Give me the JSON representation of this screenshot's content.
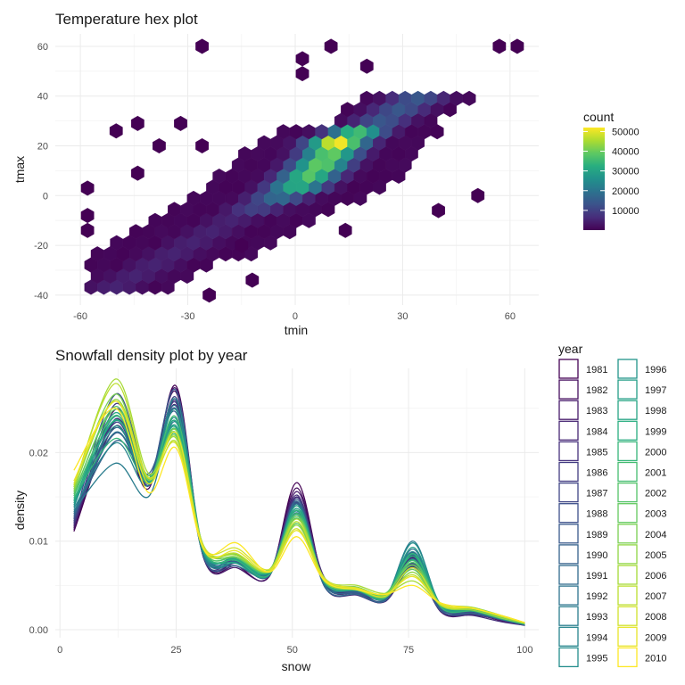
{
  "chart_data": [
    {
      "type": "heatmap",
      "subtype": "hexbin",
      "title": "Temperature hex plot",
      "xlabel": "tmin",
      "ylabel": "tmax",
      "xlim": [
        -67,
        68
      ],
      "ylim": [
        -44,
        65
      ],
      "x_ticks": [
        -60,
        -30,
        0,
        30,
        60
      ],
      "y_ticks": [
        -40,
        -20,
        0,
        20,
        40,
        60
      ],
      "x_tick_labels": [
        "-60",
        "-30",
        "0",
        "30",
        "60"
      ],
      "y_tick_labels": [
        "-40",
        "-20",
        "0",
        "20",
        "40",
        "60"
      ],
      "grid": true,
      "legend": {
        "title": "count",
        "position": "right",
        "colormap": "viridis",
        "range": [
          1,
          52000
        ],
        "breaks": [
          10000,
          20000,
          30000,
          40000,
          50000
        ],
        "labels": [
          "10000",
          "20000",
          "30000",
          "40000",
          "50000"
        ]
      },
      "core_ridge": [
        {
          "x": -18,
          "y": -10,
          "count": 5000
        },
        {
          "x": -12,
          "y": -6,
          "count": 10000
        },
        {
          "x": -6,
          "y": -2,
          "count": 18000
        },
        {
          "x": 0,
          "y": 3,
          "count": 32000
        },
        {
          "x": 4,
          "y": 8,
          "count": 38000
        },
        {
          "x": 9,
          "y": 15,
          "count": 40000
        },
        {
          "x": 13,
          "y": 24,
          "count": 52000
        },
        {
          "x": 18,
          "y": 26,
          "count": 36000
        },
        {
          "x": 24,
          "y": 30,
          "count": 14000
        }
      ],
      "outlier_points": [
        {
          "x": -26,
          "y": 60,
          "count": 1
        },
        {
          "x": 10,
          "y": 60,
          "count": 1
        },
        {
          "x": 57,
          "y": 60,
          "count": 1
        },
        {
          "x": 62,
          "y": 60,
          "count": 1
        },
        {
          "x": 2,
          "y": 55,
          "count": 1
        },
        {
          "x": 20,
          "y": 52,
          "count": 1
        },
        {
          "x": 2,
          "y": 49,
          "count": 1
        },
        {
          "x": -50,
          "y": 26,
          "count": 1
        },
        {
          "x": -44,
          "y": 29,
          "count": 1
        },
        {
          "x": -32,
          "y": 29,
          "count": 1
        },
        {
          "x": -38,
          "y": 20,
          "count": 1
        },
        {
          "x": -26,
          "y": 20,
          "count": 1
        },
        {
          "x": -44,
          "y": 9,
          "count": 1
        },
        {
          "x": -58,
          "y": 3,
          "count": 1
        },
        {
          "x": -58,
          "y": -8,
          "count": 1
        },
        {
          "x": -58,
          "y": -14,
          "count": 1
        },
        {
          "x": 51,
          "y": 0,
          "count": 1
        },
        {
          "x": 40,
          "y": -6,
          "count": 1
        },
        {
          "x": 14,
          "y": -14,
          "count": 1
        },
        {
          "x": -15,
          "y": -20,
          "count": 1
        },
        {
          "x": -24,
          "y": -40,
          "count": 1
        },
        {
          "x": -12,
          "y": -34,
          "count": 1
        }
      ]
    },
    {
      "type": "line",
      "subtype": "density",
      "title": "Snowfall density plot by year",
      "xlabel": "snow",
      "ylabel": "density",
      "xlim": [
        -1,
        103
      ],
      "ylim": [
        -0.0009,
        0.0295
      ],
      "x_ticks": [
        0,
        25,
        50,
        75,
        100
      ],
      "y_ticks": [
        0.0,
        0.01,
        0.02
      ],
      "x_tick_labels": [
        "0",
        "25",
        "50",
        "75",
        "100"
      ],
      "y_tick_labels": [
        "0.00",
        "0.01",
        "0.02"
      ],
      "grid": true,
      "colormap": "viridis",
      "legend": {
        "title": "year",
        "position": "right",
        "columns": 2
      },
      "x": [
        3,
        12,
        19,
        25,
        31,
        38,
        45,
        51,
        57,
        64,
        70,
        76,
        82,
        89,
        95,
        100
      ],
      "series": [
        {
          "name": "1981",
          "values": [
            0.0111,
            0.023,
            0.0159,
            0.0275,
            0.008,
            0.0072,
            0.006,
            0.0166,
            0.0052,
            0.0041,
            0.0032,
            0.0075,
            0.002,
            0.0018,
            0.001,
            0.0005
          ]
        },
        {
          "name": "1982",
          "values": [
            0.0113,
            0.0237,
            0.017,
            0.0268,
            0.008,
            0.0075,
            0.0063,
            0.016,
            0.0053,
            0.0042,
            0.0036,
            0.0071,
            0.0023,
            0.0019,
            0.0012,
            0.0006
          ]
        },
        {
          "name": "1983",
          "values": [
            0.0115,
            0.0249,
            0.0165,
            0.0272,
            0.008,
            0.007,
            0.006,
            0.0156,
            0.0055,
            0.0043,
            0.0033,
            0.0082,
            0.002,
            0.0017,
            0.0011,
            0.0005
          ]
        },
        {
          "name": "1984",
          "values": [
            0.0117,
            0.0236,
            0.0166,
            0.0253,
            0.0085,
            0.0075,
            0.0065,
            0.015,
            0.0058,
            0.0045,
            0.0038,
            0.0081,
            0.0025,
            0.002,
            0.0012,
            0.0006
          ]
        },
        {
          "name": "1985",
          "values": [
            0.0119,
            0.0238,
            0.0163,
            0.0258,
            0.008,
            0.0079,
            0.0063,
            0.0152,
            0.0048,
            0.0039,
            0.0032,
            0.007,
            0.0021,
            0.0016,
            0.0009,
            0.0005
          ]
        },
        {
          "name": "1986",
          "values": [
            0.0121,
            0.0255,
            0.017,
            0.0256,
            0.0085,
            0.0079,
            0.0061,
            0.0149,
            0.0055,
            0.0044,
            0.0037,
            0.0084,
            0.0024,
            0.002,
            0.0013,
            0.0006
          ]
        },
        {
          "name": "1987",
          "values": [
            0.0123,
            0.0234,
            0.0162,
            0.0262,
            0.0082,
            0.0072,
            0.0064,
            0.0144,
            0.0053,
            0.0042,
            0.0036,
            0.0075,
            0.0023,
            0.0018,
            0.0011,
            0.0005
          ]
        },
        {
          "name": "1988",
          "values": [
            0.0125,
            0.0266,
            0.0174,
            0.0249,
            0.0087,
            0.0077,
            0.0063,
            0.0143,
            0.005,
            0.0041,
            0.0034,
            0.0087,
            0.0022,
            0.0019,
            0.0011,
            0.0006
          ]
        },
        {
          "name": "1989",
          "values": [
            0.0127,
            0.0222,
            0.0169,
            0.027,
            0.0081,
            0.0076,
            0.0061,
            0.0147,
            0.0053,
            0.0043,
            0.0035,
            0.0074,
            0.0021,
            0.0018,
            0.0012,
            0.0006
          ]
        },
        {
          "name": "1990",
          "values": [
            0.0129,
            0.0213,
            0.0176,
            0.0245,
            0.0088,
            0.0072,
            0.0066,
            0.0142,
            0.005,
            0.0042,
            0.0036,
            0.0072,
            0.0023,
            0.0019,
            0.0012,
            0.0007
          ]
        },
        {
          "name": "1991",
          "values": [
            0.0131,
            0.0228,
            0.0165,
            0.0235,
            0.0082,
            0.008,
            0.0062,
            0.0145,
            0.0048,
            0.004,
            0.0033,
            0.008,
            0.0026,
            0.0021,
            0.0013,
            0.0006
          ]
        },
        {
          "name": "1992",
          "values": [
            0.0133,
            0.0223,
            0.0169,
            0.0252,
            0.0088,
            0.0076,
            0.0061,
            0.0142,
            0.005,
            0.0046,
            0.0035,
            0.0091,
            0.0025,
            0.0021,
            0.0012,
            0.0006
          ]
        },
        {
          "name": "1993",
          "values": [
            0.0135,
            0.0188,
            0.015,
            0.0234,
            0.0082,
            0.0075,
            0.0064,
            0.0132,
            0.0052,
            0.0044,
            0.0037,
            0.01,
            0.0027,
            0.0022,
            0.0014,
            0.0007
          ]
        },
        {
          "name": "1994",
          "values": [
            0.0137,
            0.0211,
            0.0163,
            0.026,
            0.0089,
            0.0081,
            0.0066,
            0.014,
            0.0054,
            0.0045,
            0.0038,
            0.0088,
            0.0026,
            0.0022,
            0.0013,
            0.0007
          ]
        },
        {
          "name": "1995",
          "values": [
            0.0139,
            0.0241,
            0.0168,
            0.0238,
            0.0085,
            0.0075,
            0.0065,
            0.0134,
            0.0052,
            0.0045,
            0.0037,
            0.0098,
            0.0028,
            0.0024,
            0.0015,
            0.0007
          ]
        },
        {
          "name": "1996",
          "values": [
            0.0141,
            0.023,
            0.0166,
            0.0248,
            0.0089,
            0.0079,
            0.0064,
            0.0137,
            0.0056,
            0.0047,
            0.004,
            0.0085,
            0.0027,
            0.0022,
            0.0013,
            0.0007
          ]
        },
        {
          "name": "1997",
          "values": [
            0.0143,
            0.0236,
            0.017,
            0.0228,
            0.0086,
            0.008,
            0.0066,
            0.013,
            0.0054,
            0.0046,
            0.0037,
            0.0093,
            0.0027,
            0.0022,
            0.0014,
            0.0007
          ]
        },
        {
          "name": "1998",
          "values": [
            0.0145,
            0.0245,
            0.0167,
            0.023,
            0.009,
            0.0075,
            0.0062,
            0.014,
            0.0054,
            0.0044,
            0.0038,
            0.0079,
            0.0026,
            0.0021,
            0.0012,
            0.0006
          ]
        },
        {
          "name": "1999",
          "values": [
            0.0147,
            0.0237,
            0.017,
            0.0235,
            0.0089,
            0.0079,
            0.0065,
            0.0128,
            0.0055,
            0.0047,
            0.004,
            0.0083,
            0.0028,
            0.0023,
            0.0014,
            0.0007
          ]
        },
        {
          "name": "2000",
          "values": [
            0.0149,
            0.0216,
            0.0165,
            0.022,
            0.0088,
            0.0078,
            0.0062,
            0.0135,
            0.0053,
            0.0045,
            0.0036,
            0.0086,
            0.0025,
            0.0021,
            0.0013,
            0.0007
          ]
        },
        {
          "name": "2001",
          "values": [
            0.0151,
            0.0242,
            0.0171,
            0.024,
            0.0091,
            0.0082,
            0.0067,
            0.0126,
            0.0057,
            0.0048,
            0.0041,
            0.0078,
            0.0029,
            0.0024,
            0.0015,
            0.0008
          ]
        },
        {
          "name": "2002",
          "values": [
            0.0153,
            0.0252,
            0.0169,
            0.0226,
            0.009,
            0.0081,
            0.0066,
            0.0131,
            0.0056,
            0.0047,
            0.0039,
            0.0076,
            0.0028,
            0.0023,
            0.0014,
            0.0007
          ]
        },
        {
          "name": "2003",
          "values": [
            0.0155,
            0.0249,
            0.0174,
            0.0222,
            0.0092,
            0.0085,
            0.0065,
            0.012,
            0.0055,
            0.0046,
            0.0039,
            0.0068,
            0.0027,
            0.0023,
            0.0014,
            0.0007
          ]
        },
        {
          "name": "2004",
          "values": [
            0.0157,
            0.0266,
            0.0169,
            0.0225,
            0.0093,
            0.0082,
            0.0068,
            0.0128,
            0.0057,
            0.0048,
            0.0041,
            0.0073,
            0.0029,
            0.0025,
            0.0016,
            0.0008
          ]
        },
        {
          "name": "2005",
          "values": [
            0.0159,
            0.026,
            0.0171,
            0.0218,
            0.0091,
            0.0086,
            0.0066,
            0.0118,
            0.0054,
            0.0045,
            0.0037,
            0.0065,
            0.0027,
            0.0022,
            0.0013,
            0.0007
          ]
        },
        {
          "name": "2006",
          "values": [
            0.0161,
            0.0283,
            0.0177,
            0.0216,
            0.0094,
            0.0084,
            0.0067,
            0.0125,
            0.0058,
            0.005,
            0.0041,
            0.0055,
            0.003,
            0.0025,
            0.0015,
            0.0008
          ]
        },
        {
          "name": "2007",
          "values": [
            0.0163,
            0.0278,
            0.0171,
            0.0212,
            0.0092,
            0.0086,
            0.0066,
            0.0122,
            0.0056,
            0.0047,
            0.004,
            0.0062,
            0.0028,
            0.0024,
            0.0015,
            0.0008
          ]
        },
        {
          "name": "2008",
          "values": [
            0.0165,
            0.0258,
            0.0172,
            0.021,
            0.0093,
            0.0092,
            0.0068,
            0.0114,
            0.0055,
            0.0046,
            0.0038,
            0.007,
            0.0028,
            0.0024,
            0.0015,
            0.0008
          ]
        },
        {
          "name": "2009",
          "values": [
            0.0168,
            0.0258,
            0.0165,
            0.0222,
            0.009,
            0.0089,
            0.0066,
            0.0112,
            0.0057,
            0.0047,
            0.004,
            0.006,
            0.0029,
            0.0024,
            0.0016,
            0.0008
          ]
        },
        {
          "name": "2010",
          "values": [
            0.018,
            0.025,
            0.0155,
            0.0205,
            0.009,
            0.0098,
            0.0065,
            0.0105,
            0.0055,
            0.0045,
            0.004,
            0.005,
            0.003,
            0.0024,
            0.0016,
            0.0008
          ]
        }
      ]
    }
  ]
}
